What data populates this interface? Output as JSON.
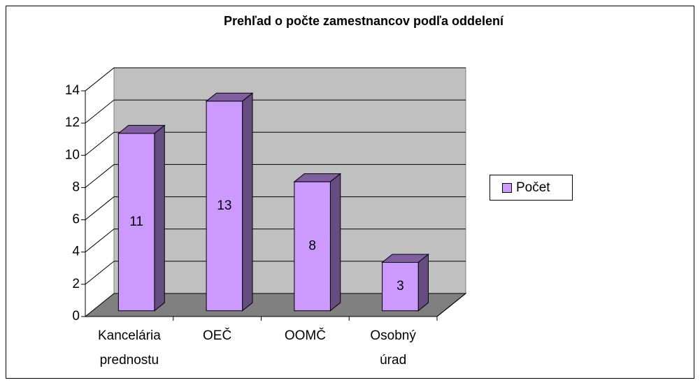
{
  "chart_data": {
    "type": "bar3d",
    "title": "Prehľad o počte zamestnancov podľa oddelení",
    "categories": [
      "Kancelária prednostu",
      "OEČ",
      "OOMČ",
      "Osobný úrad"
    ],
    "series": [
      {
        "name": "Počet",
        "color": "#cc99ff",
        "values": [
          11,
          13,
          8,
          3
        ]
      }
    ],
    "ylim": [
      0,
      14
    ],
    "yticks": [
      0,
      2,
      4,
      6,
      8,
      10,
      12,
      14
    ],
    "grid": true,
    "legend": "right"
  }
}
